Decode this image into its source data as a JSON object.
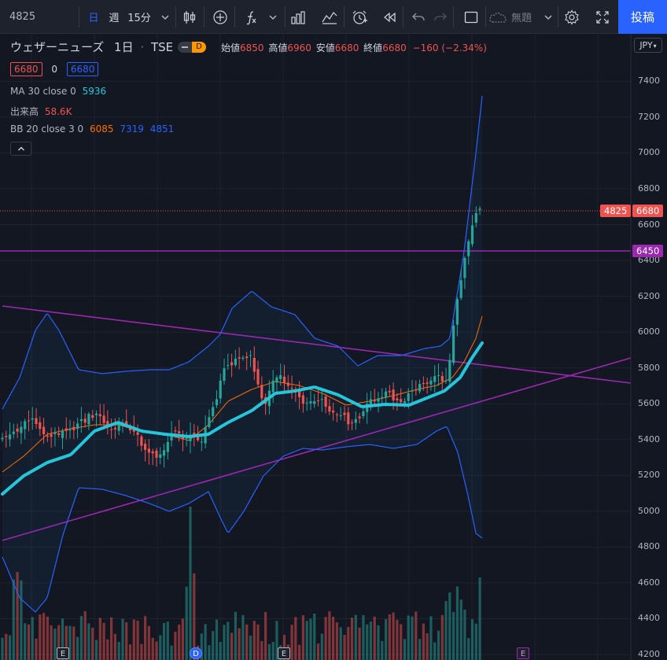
{
  "toolbar": {
    "symbol": "4825",
    "tf_day": "日",
    "tf_week": "週",
    "tf_15m": "15分",
    "layout_name": "無題",
    "publish": "投稿"
  },
  "legend": {
    "name": "ウェザーニューズ",
    "interval": "1日",
    "exchange": "TSE",
    "d_badge": "D",
    "ohlc": {
      "open_label": "始値",
      "open": "6850",
      "high_label": "高値",
      "high": "6960",
      "low_label": "安値",
      "low": "6680",
      "close_label": "終値",
      "close": "6680",
      "change": "−160 (−2.34%)"
    },
    "bid": "6680",
    "spread": "0",
    "ask": "6680",
    "ma": {
      "label": "MA 30 close 0",
      "value": "5936"
    },
    "volume": {
      "label": "出来高",
      "value": "58.6K"
    },
    "bb": {
      "label": "BB 20 close 3 0",
      "basis": "6085",
      "upper": "7319",
      "lower": "4851"
    }
  },
  "axis": {
    "currency": "JPY",
    "ticks": [
      4200,
      4400,
      4600,
      4800,
      5000,
      5200,
      5400,
      5600,
      5800,
      6000,
      6200,
      6400,
      6600,
      6800,
      7000,
      7200,
      7400
    ],
    "last_price_tag": "6680",
    "symbol_tag": "4825",
    "line_tag": "6450"
  },
  "events": [
    "E",
    "D",
    "E",
    "E"
  ],
  "colors": {
    "up": "#26a69a",
    "down": "#ef5350",
    "ma": "#26c6da",
    "bb_basis": "#ff6d00",
    "bb_band": "#2962ff",
    "trendline": "#9c27b0",
    "background": "#131722"
  }
}
